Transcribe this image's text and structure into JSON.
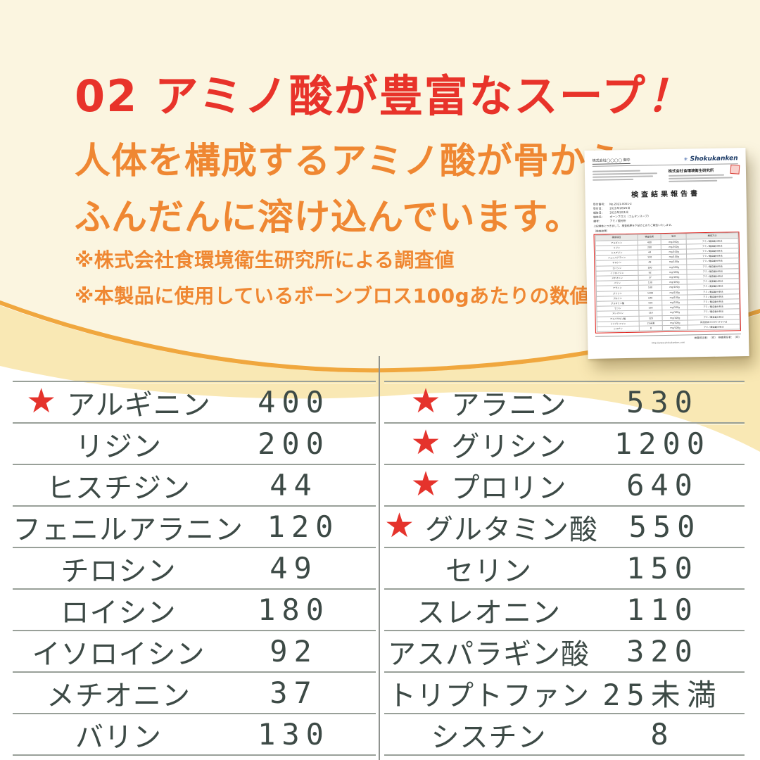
{
  "colors": {
    "background_top": "#FBF5E0",
    "background_bottom": "#FFFFFF",
    "wave_band": "#F9E8B4",
    "wave_stroke": "#F0A73E",
    "title_red": "#E8332A",
    "body_orange": "#EF8732",
    "table_text": "#3D4A46",
    "table_line": "#99A099",
    "star_red": "#E5332C",
    "report_border_red": "#DD201A"
  },
  "header": {
    "title": "02 アミノ酸が豊富なスープ",
    "title_bang": "！"
  },
  "lead": {
    "line1": "人体を構成するアミノ酸が骨から",
    "line2": "ふんだんに溶け込んでいます。"
  },
  "notes": [
    "※株式会社食環境衛生研究所による調査値",
    "※本製品に使用しているボーンブロス100gあたりの数値"
  ],
  "amino_table": {
    "left": [
      {
        "name": "アルギニン",
        "value": "400",
        "star": true
      },
      {
        "name": "リジン",
        "value": "200",
        "star": false
      },
      {
        "name": "ヒスチジン",
        "value": "44",
        "star": false
      },
      {
        "name": "フェニルアラニン",
        "value": "120",
        "star": false
      },
      {
        "name": "チロシン",
        "value": "49",
        "star": false
      },
      {
        "name": "ロイシン",
        "value": "180",
        "star": false
      },
      {
        "name": "イソロイシン",
        "value": "92",
        "star": false
      },
      {
        "name": "メチオニン",
        "value": "37",
        "star": false
      },
      {
        "name": "バリン",
        "value": "130",
        "star": false
      }
    ],
    "right": [
      {
        "name": "アラニン",
        "value": "530",
        "star": true
      },
      {
        "name": "グリシン",
        "value": "1200",
        "star": true
      },
      {
        "name": "プロリン",
        "value": "640",
        "star": true
      },
      {
        "name": "グルタミン酸",
        "value": "550",
        "star": true
      },
      {
        "name": "セリン",
        "value": "150",
        "star": false
      },
      {
        "name": "スレオニン",
        "value": "110",
        "star": false
      },
      {
        "name": "アスパラギン酸",
        "value": "320",
        "star": false
      },
      {
        "name": "トリプトファン",
        "value": "25未満",
        "star": false
      },
      {
        "name": "シスチン",
        "value": "8",
        "star": false
      }
    ]
  },
  "chart_data": {
    "type": "table",
    "title": "アミノ酸が豊富なスープ（ボーンブロス100gあたり）",
    "columns": [
      "アミノ酸",
      "mg/100g"
    ],
    "rows": [
      [
        "アルギニン",
        "400"
      ],
      [
        "リジン",
        "200"
      ],
      [
        "ヒスチジン",
        "44"
      ],
      [
        "フェニルアラニン",
        "120"
      ],
      [
        "チロシン",
        "49"
      ],
      [
        "ロイシン",
        "180"
      ],
      [
        "イソロイシン",
        "92"
      ],
      [
        "メチオニン",
        "37"
      ],
      [
        "バリン",
        "130"
      ],
      [
        "アラニン",
        "530"
      ],
      [
        "グリシン",
        "1200"
      ],
      [
        "プロリン",
        "640"
      ],
      [
        "グルタミン酸",
        "550"
      ],
      [
        "セリン",
        "150"
      ],
      [
        "スレオニン",
        "110"
      ],
      [
        "アスパラギン酸",
        "320"
      ],
      [
        "トリプトファン",
        "25未満"
      ],
      [
        "シスチン",
        "8"
      ]
    ],
    "starred": [
      "アルギニン",
      "アラニン",
      "グリシン",
      "プロリン",
      "グルタミン酸"
    ]
  },
  "document": {
    "logo": "Shokukanken",
    "recipient": "株式会社◯◯◯◯ 御中",
    "company": "株式会社食環境衛生研究所",
    "title": "検査結果報告書",
    "meta": [
      "受付番号：　No.2021-0001-2",
      "受付日：　　2021年1月25日",
      "報告日：　　2021年2月1日",
      "検体名：　　ボーンブロス（コムタンスープ）",
      "備考：　　　アミノ酸分析"
    ],
    "note": "上記検体につきまして、検査結果を下記のとおりご報告いたします。",
    "result_label": "［検査結果］",
    "table": {
      "headers": [
        "検査項目",
        "検査結果",
        "単位",
        "検査方法"
      ],
      "unit": "mg/100g",
      "method_default": "アミノ酸自動分析法",
      "method_tryptophan": "高速液体クロマトグラフ法"
    },
    "footer_signers": "検査担当者：（印）　検査責任者：（印）",
    "url": "http://www.shokukanken.com"
  }
}
